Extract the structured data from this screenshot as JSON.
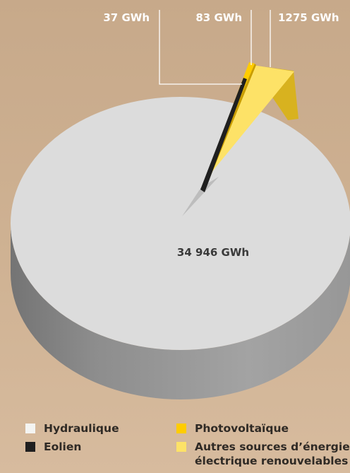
{
  "chart_data": {
    "type": "pie",
    "categories": [
      "Hydraulique",
      "Eolien",
      "Photovoltaïque",
      "Autres sources d’énergie électrique renouvelables"
    ],
    "values": [
      34946,
      37,
      83,
      1275
    ],
    "unit": "GWh",
    "data_labels": [
      "34 946 GWh",
      "37 GWh",
      "83 GWh",
      "1275 GWh"
    ],
    "colors": [
      "#dcdcdc",
      "#1f1f1f",
      "#ffcc00",
      "#fde267"
    ],
    "legend_placement": "bottom"
  },
  "legend": {
    "items": [
      {
        "label": "Hydraulique",
        "color": "#f4f4f2"
      },
      {
        "label": "Eolien",
        "color": "#1f1f1f"
      },
      {
        "label": "Photovoltaïque",
        "color": "#ffcc00"
      },
      {
        "label": "Autres sources d’énergie\nélectrique renouvelables",
        "color": "#fde267"
      }
    ]
  }
}
